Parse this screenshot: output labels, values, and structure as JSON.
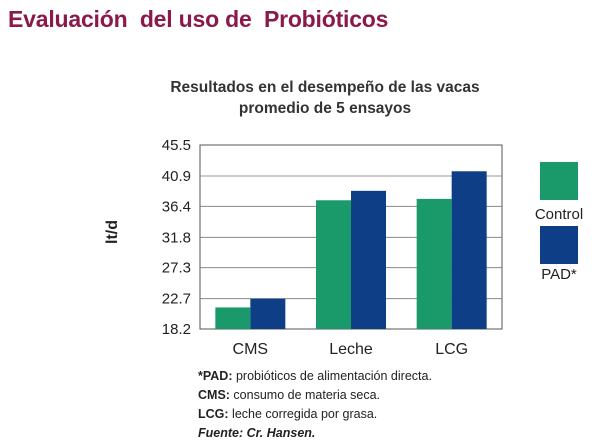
{
  "heading": "Evaluación  del uso de  Probióticos",
  "colors": {
    "control": "#1a9a6a",
    "pad": "#0d3e86",
    "heading": "#8b1a4b"
  },
  "chart_data": {
    "type": "bar",
    "title_lines": [
      "Resultados en el desempeño de las vacas",
      "promedio de 5 ensayos"
    ],
    "ylabel": "lt/d",
    "xlabel": "",
    "categories": [
      "CMS",
      "Leche",
      "LCG"
    ],
    "series": [
      {
        "name": "Control",
        "values": [
          21.4,
          37.3,
          37.5
        ]
      },
      {
        "name": "PAD*",
        "values": [
          22.7,
          38.7,
          41.6
        ]
      }
    ],
    "yticks": [
      "45.5",
      "40.9",
      "36.4",
      "31.8",
      "27.3",
      "22.7",
      "18.2"
    ],
    "ylim": [
      18.2,
      45.5
    ],
    "grid": true,
    "legend_position": "right"
  },
  "footnotes": [
    {
      "term": "*PAD:",
      "text": " probióticos de alimentación directa."
    },
    {
      "term": "CMS:",
      "text": " consumo de materia seca."
    },
    {
      "term": "LCG:",
      "text": " leche corregida por grasa."
    }
  ],
  "source": "Fuente: Cr. Hansen."
}
